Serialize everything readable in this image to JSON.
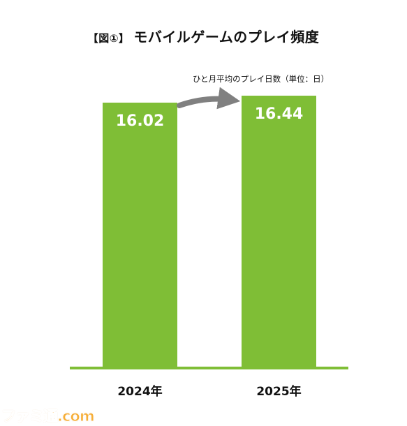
{
  "title": {
    "prefix": "【図①】",
    "text": "モバイルゲームのプレイ頻度"
  },
  "unit_note": "ひと月平均のプレイ日数（単位：日）",
  "watermark": "ファミ通.com",
  "colors": {
    "bar": "#7fbe36",
    "baseline": "#7fbe36",
    "arrow": "#808080",
    "label": "#ffffff"
  },
  "chart_data": {
    "type": "bar",
    "categories": [
      "2024年",
      "2025年"
    ],
    "values": [
      16.02,
      16.44
    ],
    "value_labels": [
      "16.02",
      "16.44"
    ],
    "title": "モバイルゲームのプレイ頻度",
    "ylabel": "ひと月平均のプレイ日数（単位：日）",
    "ylim": [
      0,
      16.44
    ],
    "grid": false,
    "legend": "none",
    "annotation": "arrow from 2024 bar to 2025 bar indicating increase"
  }
}
